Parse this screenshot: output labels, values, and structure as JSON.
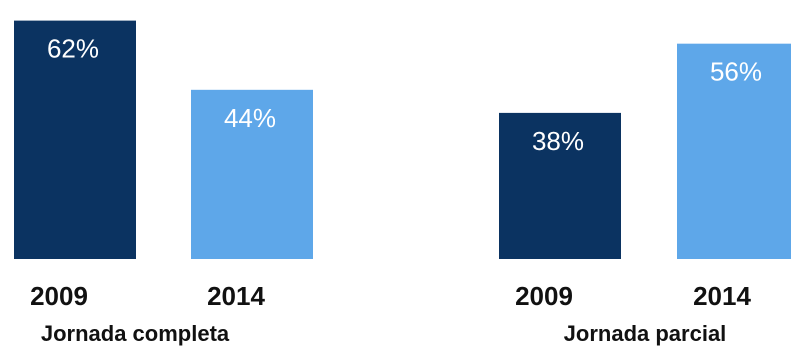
{
  "chart_data": {
    "type": "bar",
    "groups": [
      {
        "label": "Jornada completa",
        "categories": [
          "2009",
          "2014"
        ],
        "values": [
          62,
          44
        ],
        "value_labels": [
          "62%",
          "44%"
        ]
      },
      {
        "label": "Jornada parcial",
        "categories": [
          "2009",
          "2014"
        ],
        "values": [
          38,
          56
        ],
        "value_labels": [
          "38%",
          "56%"
        ]
      }
    ],
    "colors": {
      "2009": "#0b3361",
      "2014": "#5ea7e9"
    },
    "title": "",
    "xlabel": "",
    "ylabel": "",
    "ylim": [
      0,
      65
    ],
    "grid": false,
    "legend": "none"
  }
}
